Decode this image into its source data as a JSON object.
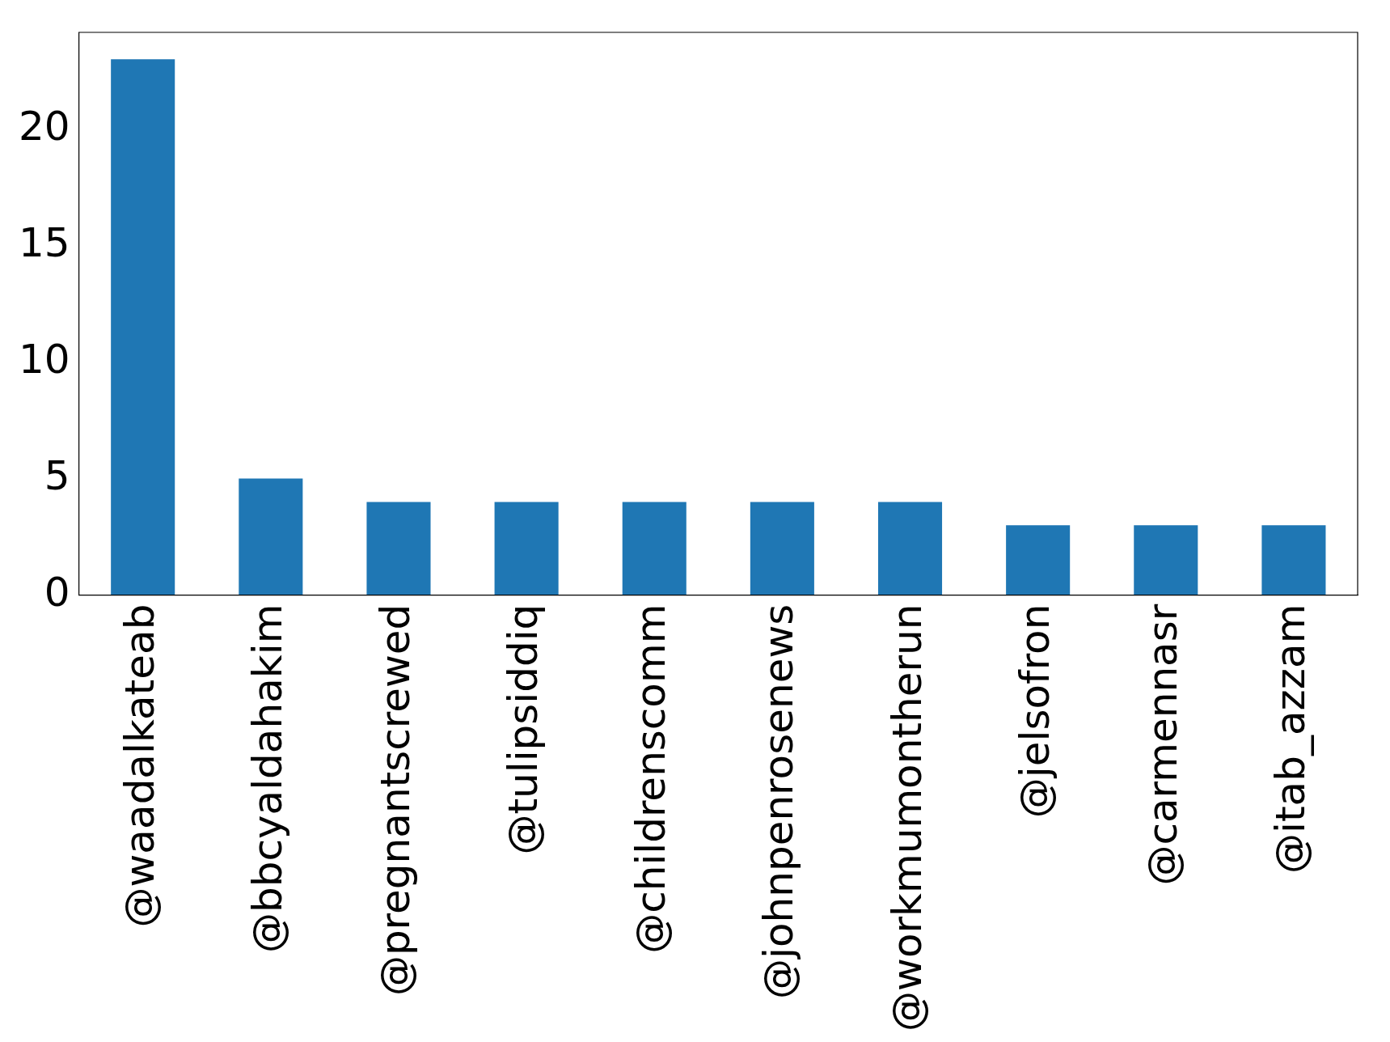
{
  "chart_data": {
    "type": "bar",
    "categories": [
      "@waadalkateab",
      "@bbcyaldahakim",
      "@pregnantscrewed",
      "@tulipsiddiq",
      "@childrenscomm",
      "@johnpenrosenews",
      "@workmumontherun",
      "@jelsofron",
      "@carmennasr",
      "@itab_azzam"
    ],
    "values": [
      23,
      5,
      4,
      4,
      4,
      4,
      4,
      3,
      3,
      3
    ],
    "color": "#1f77b4",
    "ylim": [
      0,
      24.15
    ],
    "yticks": [
      0,
      5,
      10,
      15,
      20
    ],
    "grid": false,
    "legend": false
  }
}
